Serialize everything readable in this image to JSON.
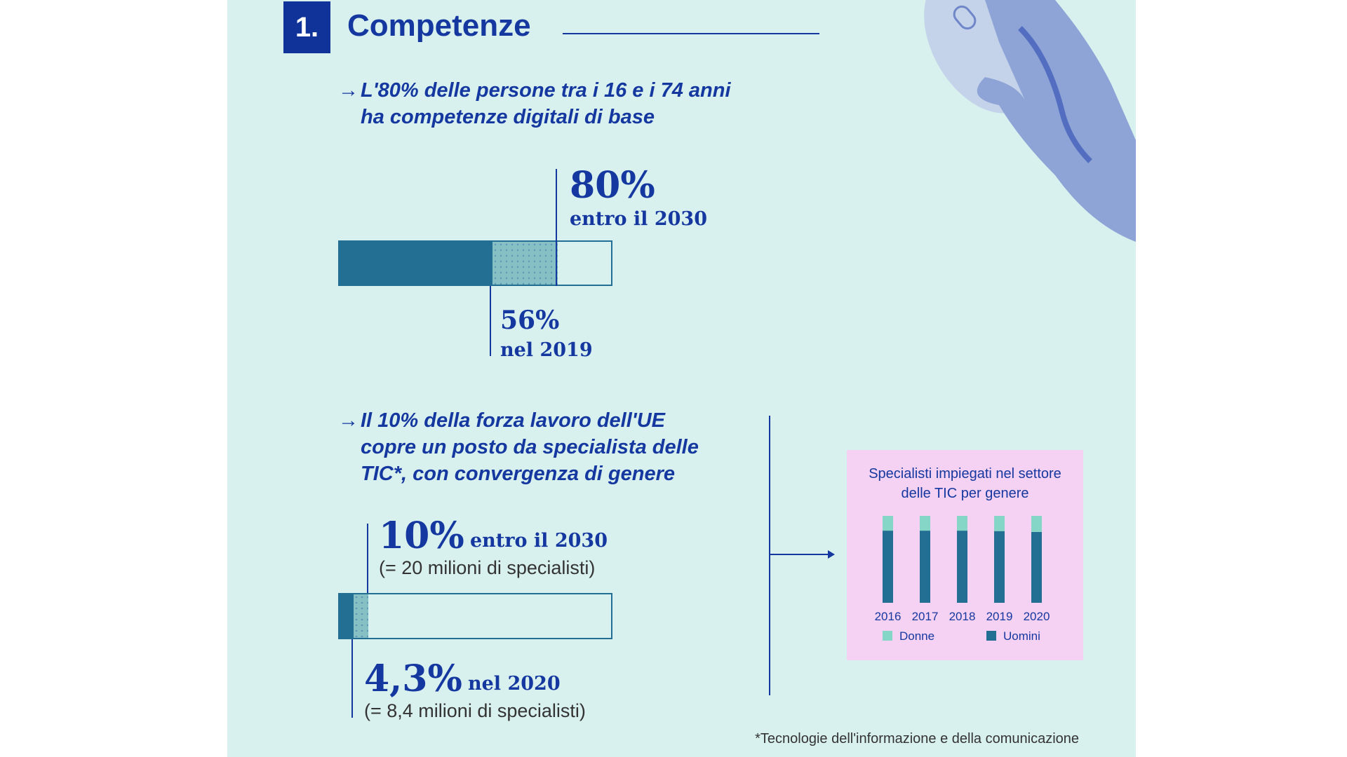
{
  "section": {
    "number": "1.",
    "title": "Competenze"
  },
  "bullet1": {
    "arrow_icon": "arrow-right-icon",
    "lines": [
      "L'80% delle persone tra i 16 e i 74 anni",
      "ha competenze digitali di base"
    ]
  },
  "bar1": {
    "current_percent": 56,
    "target_percent": 80,
    "target_value": "80%",
    "target_label": "entro il 2030",
    "current_value": "56%",
    "current_label": "nel 2019"
  },
  "bullet2": {
    "arrow_icon": "arrow-right-icon",
    "lines": [
      "Il 10% della forza lavoro dell'UE",
      "copre un posto da specialista delle",
      "TIC*, con convergenza di genere"
    ]
  },
  "bar2": {
    "current_percent": 4.3,
    "target_percent": 10,
    "target_value": "10%",
    "target_label": "entro il 2030",
    "target_note": "(= 20 milioni di specialisti)",
    "current_value": "4,3%",
    "current_label": "nel 2020",
    "current_note": "(= 8,4 milioni di specialisti)"
  },
  "chart_data": {
    "type": "bar",
    "stacked": true,
    "title": "Specialisti impiegati nel settore delle TIC per genere",
    "categories": [
      "2016",
      "2017",
      "2018",
      "2019",
      "2020"
    ],
    "series": [
      {
        "name": "Donne",
        "color": "#86d6c8",
        "values": [
          17,
          17,
          17,
          17.5,
          18.5
        ]
      },
      {
        "name": "Uomini",
        "color": "#236f94",
        "values": [
          83,
          83,
          83,
          82.5,
          81.5
        ]
      }
    ],
    "ylim": [
      0,
      100
    ],
    "legend": "bottom"
  },
  "footnote": "*Tecnologie dell'informazione e della comunicazione",
  "colors": {
    "navy": "#1538a0",
    "bar": "#236f94",
    "hatch": "#86c0c4",
    "panel": "#d9f1ee",
    "chart_bg": "#f5d2f4"
  }
}
